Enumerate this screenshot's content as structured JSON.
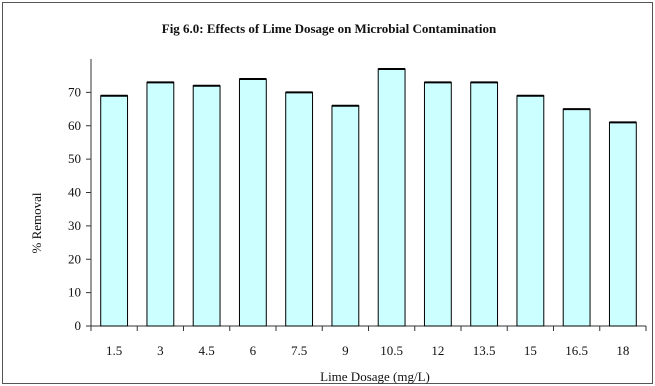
{
  "chart_data": {
    "type": "bar",
    "title": "Fig 6.0: Effects of Lime Dosage on Microbial Contamination",
    "xlabel": "Lime Dosage (mg/L)",
    "ylabel": "% Removal",
    "categories": [
      "1.5",
      "3",
      "4.5",
      "6",
      "7.5",
      "9",
      "10.5",
      "12",
      "13.5",
      "15",
      "16.5",
      "18"
    ],
    "values": [
      69,
      73,
      72,
      74,
      70,
      66,
      77,
      73,
      73,
      69,
      65,
      61
    ],
    "ylim": [
      0,
      80
    ],
    "yticks": [
      0,
      10,
      20,
      30,
      40,
      50,
      60,
      70
    ],
    "grid": false,
    "legend": "none",
    "colors": {
      "bar_fill": "#ccffff",
      "bar_stroke": "#000000",
      "axis": "#333333"
    }
  }
}
